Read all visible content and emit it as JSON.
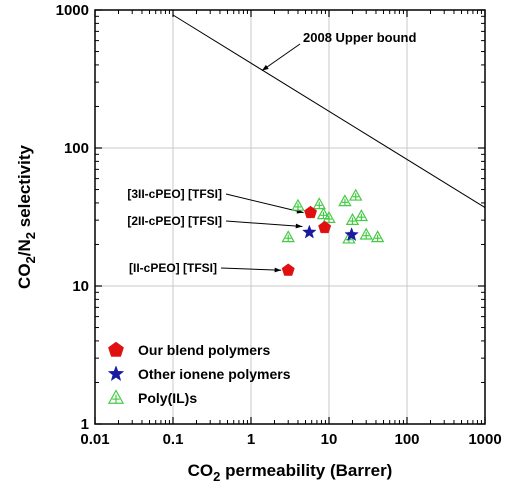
{
  "chart_data": {
    "type": "scatter",
    "title": "",
    "xlabel": {
      "main": "CO",
      "sub": "2",
      "rest": " permeability (Barrer)"
    },
    "ylabel": {
      "p1": "CO",
      "s1": "2",
      "p2": "/N",
      "s2": "2",
      "p3": " selectivity"
    },
    "xscale": "log",
    "yscale": "log",
    "xlim": [
      0.01,
      1000
    ],
    "ylim": [
      1,
      1000
    ],
    "xticks": [
      "0.01",
      "0.1",
      "1",
      "10",
      "100",
      "1000"
    ],
    "yticks": [
      "1",
      "10",
      "100",
      "1000"
    ],
    "grid": true,
    "upper_bound": {
      "label": "2008 Upper bound",
      "points": [
        [
          0.1,
          920
        ],
        [
          1000,
          37
        ]
      ]
    },
    "series": [
      {
        "name": "Our blend polymers",
        "marker": "pentagon",
        "color": "#e01010",
        "points": [
          [
            3.0,
            13.0
          ],
          [
            5.8,
            34.0
          ],
          [
            8.8,
            26.5
          ]
        ]
      },
      {
        "name": "Other ionene polymers",
        "marker": "star",
        "color": "#1a1aa0",
        "points": [
          [
            5.6,
            24.5
          ],
          [
            19.5,
            23.5
          ]
        ]
      },
      {
        "name": "Poly(IL)s",
        "marker": "triangle-plus",
        "color": "#44cc44",
        "points": [
          [
            3.0,
            22.5
          ],
          [
            4.0,
            38.0
          ],
          [
            7.5,
            39.0
          ],
          [
            8.5,
            33.0
          ],
          [
            10.0,
            31.0
          ],
          [
            16.0,
            41.0
          ],
          [
            18.0,
            22.0
          ],
          [
            20.0,
            30.0
          ],
          [
            22.0,
            45.0
          ],
          [
            26.0,
            32.0
          ],
          [
            30.0,
            23.5
          ],
          [
            42.0,
            22.5
          ]
        ]
      }
    ],
    "annotations": [
      {
        "text": "[3II-cPEO] [TFSI]",
        "point": [
          5.8,
          34.0
        ]
      },
      {
        "text": "[2II-cPEO] [TFSI]",
        "point": [
          5.6,
          27.0
        ]
      },
      {
        "text": "[II-cPEO] [TFSI]",
        "point": [
          3.0,
          13.0
        ]
      }
    ],
    "legend_position": "bottom-left"
  }
}
